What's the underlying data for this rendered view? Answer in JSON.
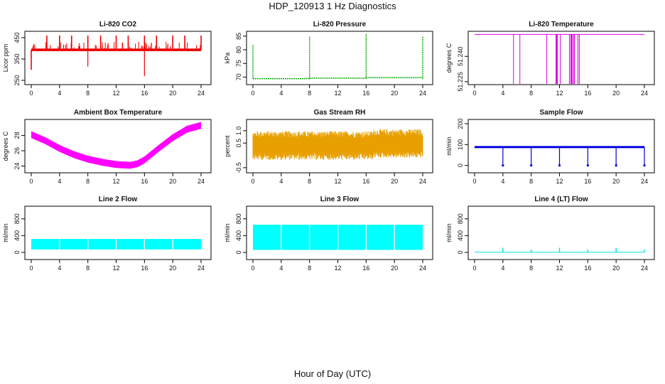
{
  "page_title": "HDP_120913  1 Hz Diagnostics",
  "x_axis_label": "Hour of Day (UTC)",
  "chart_data": [
    {
      "id": "co2",
      "type": "line",
      "title": "Li-820 CO2",
      "ylabel": "Licor ppm",
      "color": "#ee0000",
      "xlim": [
        0,
        24
      ],
      "ylim": [
        240,
        470
      ],
      "yticks": [
        "250",
        "350",
        "450"
      ],
      "ytick_values": [
        250,
        350,
        450
      ],
      "xticks": [
        "0",
        "4",
        "8",
        "12",
        "16",
        "20",
        "24"
      ],
      "baseline": 393,
      "band": 6,
      "spikes_up": [
        2.2,
        4,
        5.7,
        8,
        9.8,
        12,
        13.7,
        16,
        17.7,
        20,
        21.7,
        24
      ],
      "spike_top": 460,
      "spikes_down": [
        [
          8,
          315
        ],
        [
          16,
          270
        ]
      ],
      "start_dip": 300
    },
    {
      "id": "pressure",
      "type": "line",
      "title": "Li-820 Pressure",
      "ylabel": "kPa",
      "color": "#00aa00",
      "xlim": [
        0,
        24
      ],
      "ylim": [
        68,
        86
      ],
      "yticks": [
        "70",
        "75",
        "80",
        "85"
      ],
      "ytick_values": [
        70,
        75,
        80,
        85
      ],
      "xticks": [
        "0",
        "4",
        "8",
        "12",
        "16",
        "20",
        "24"
      ],
      "segments": [
        [
          0,
          69.4
        ],
        [
          8,
          69.6
        ],
        [
          16,
          69.8
        ],
        [
          24,
          69.8
        ]
      ],
      "spikes": [
        [
          0,
          82
        ],
        [
          8,
          85
        ],
        [
          16,
          86
        ],
        [
          24,
          85
        ]
      ]
    },
    {
      "id": "licor_temp",
      "type": "line",
      "title": "Li-820 Temperature",
      "ylabel": "degrees C",
      "color": "#dd00dd",
      "xlim": [
        0,
        24
      ],
      "ylim": [
        51.2245,
        51.2536
      ],
      "yticks": [
        "51.225",
        "51.240"
      ],
      "ytick_values": [
        51.225,
        51.24
      ],
      "xticks": [
        "0",
        "4",
        "8",
        "12",
        "16",
        "20",
        "24"
      ],
      "baseline": 51.253,
      "drops": [
        5.5,
        6.4,
        10.2,
        11.5,
        11.6,
        11.7,
        12.1,
        13.4,
        13.6,
        13.7,
        13.8,
        14.0,
        14.1,
        14.6,
        14.8
      ]
    },
    {
      "id": "ambient_temp",
      "type": "line",
      "title": "Ambient Box Temperature",
      "ylabel": "degrees C",
      "color": "#ff00ff",
      "xlim": [
        0,
        24
      ],
      "ylim": [
        23.4,
        29.8
      ],
      "yticks": [
        "24",
        "26",
        "28"
      ],
      "ytick_values": [
        24,
        26,
        28
      ],
      "xticks": [
        "0",
        "4",
        "8",
        "12",
        "16",
        "20",
        "24"
      ],
      "points": [
        [
          0,
          28.1
        ],
        [
          2,
          27.3
        ],
        [
          4,
          26.3
        ],
        [
          6,
          25.5
        ],
        [
          8,
          24.9
        ],
        [
          10,
          24.5
        ],
        [
          12,
          24.2
        ],
        [
          14,
          24.1
        ],
        [
          15,
          24.3
        ],
        [
          16,
          24.8
        ],
        [
          18,
          26.3
        ],
        [
          20,
          27.7
        ],
        [
          22,
          28.8
        ],
        [
          24,
          29.3
        ]
      ],
      "band": 0.45
    },
    {
      "id": "rh",
      "type": "line",
      "title": "Gas Stream RH",
      "ylabel": "percent",
      "color": "#e8a000",
      "xlim": [
        0,
        24
      ],
      "ylim": [
        -0.62,
        1.37
      ],
      "yticks": [
        "-0.5",
        "0.5",
        "1.0"
      ],
      "ytick_values": [
        -0.5,
        0.5,
        1.0
      ],
      "xticks": [
        "0",
        "4",
        "8",
        "12",
        "16",
        "20",
        "24"
      ],
      "center": 0.4,
      "spread": 0.5,
      "mid_shift": 0.45
    },
    {
      "id": "sample_flow",
      "type": "line",
      "title": "Sample Flow",
      "ylabel": "ml/min",
      "color": "#0000dd",
      "xlim": [
        0,
        24
      ],
      "ylim": [
        -25,
        210
      ],
      "yticks": [
        "0",
        "100",
        "200"
      ],
      "ytick_values": [
        0,
        100,
        200
      ],
      "xticks": [
        "0",
        "4",
        "8",
        "12",
        "16",
        "20",
        "24"
      ],
      "baseline": 88,
      "dips": [
        4,
        8,
        12,
        16,
        20,
        24
      ]
    },
    {
      "id": "line2",
      "type": "area",
      "title": "Line 2 Flow",
      "ylabel": "ml/min",
      "color": "#00ffff",
      "xlim": [
        0,
        24
      ],
      "ylim": [
        -120,
        1050
      ],
      "yticks": [
        "0",
        "400",
        "800"
      ],
      "ytick_values": [
        0,
        400,
        800
      ],
      "xticks": [
        "0",
        "4",
        "8",
        "12",
        "16",
        "20",
        "24"
      ],
      "low": 70,
      "high": 320,
      "gaps": [
        4,
        8,
        12,
        16,
        20
      ]
    },
    {
      "id": "line3",
      "type": "area",
      "title": "Line 3 Flow",
      "ylabel": "ml/min",
      "color": "#00ffff",
      "xlim": [
        0,
        24
      ],
      "ylim": [
        -120,
        1050
      ],
      "yticks": [
        "0",
        "400",
        "800"
      ],
      "ytick_values": [
        0,
        400,
        800
      ],
      "xticks": [
        "0",
        "4",
        "8",
        "12",
        "16",
        "20",
        "24"
      ],
      "low": 60,
      "high": 660,
      "gaps": [
        4,
        8,
        12,
        16,
        20
      ]
    },
    {
      "id": "line4",
      "type": "line",
      "title": "Line 4 (LT) Flow",
      "ylabel": "ml/min",
      "color": "#00e0e0",
      "xlim": [
        0,
        24
      ],
      "ylim": [
        -120,
        1050
      ],
      "yticks": [
        "0",
        "400",
        "800"
      ],
      "ytick_values": [
        0,
        400,
        800
      ],
      "xticks": [
        "0",
        "4",
        "8",
        "12",
        "16",
        "20",
        "24"
      ],
      "baseline": 5,
      "spikes": [
        [
          4,
          110
        ],
        [
          8,
          70
        ],
        [
          12,
          110
        ],
        [
          16,
          70
        ],
        [
          20,
          110
        ],
        [
          24,
          70
        ]
      ]
    }
  ]
}
